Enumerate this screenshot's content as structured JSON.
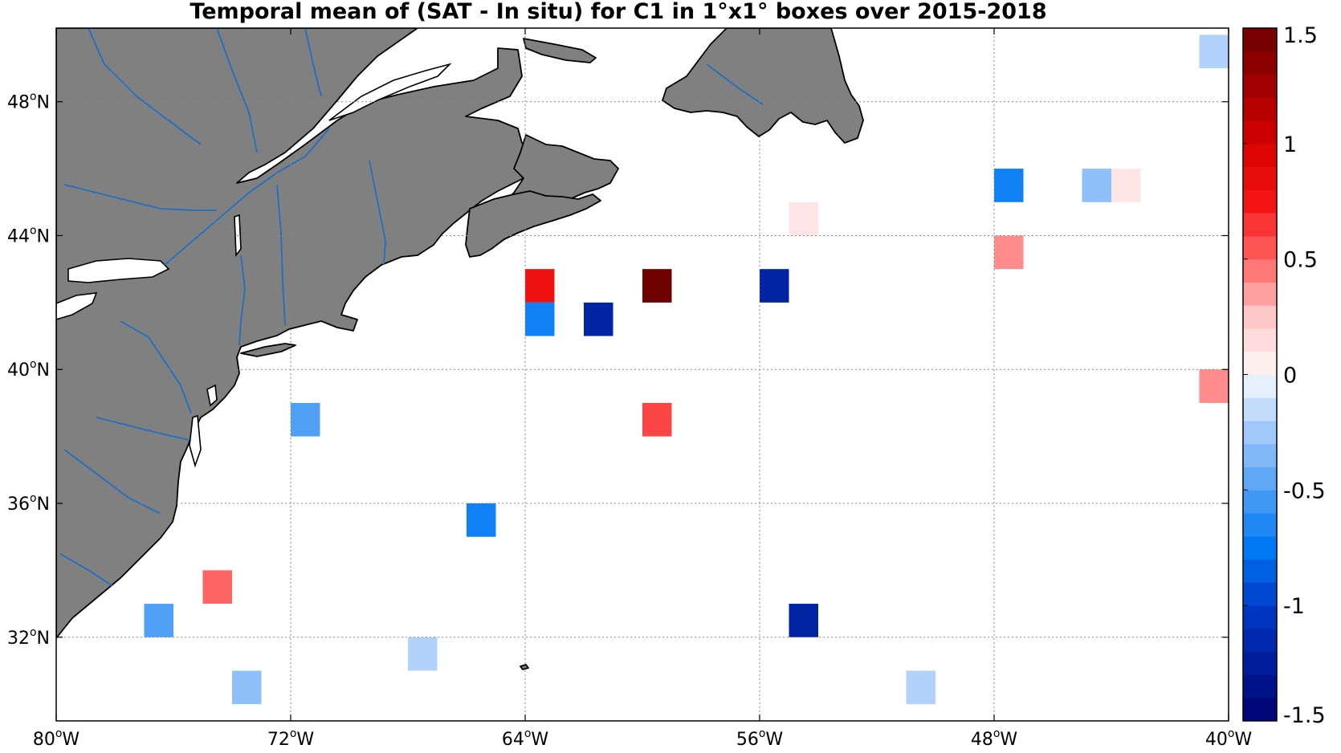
{
  "title": "Temporal mean of (SAT - In situ) for C1 in 1°x1° boxes over 2015-2018",
  "colors": {
    "land": "#808080",
    "coast": "#000000",
    "rivers": "#1f6fc4",
    "grid": "#888888",
    "ocean": "#ffffff"
  },
  "chart_data": {
    "type": "heatmap",
    "extent": {
      "lon": [
        -80,
        -40
      ],
      "lat": [
        29.5,
        50.2
      ]
    },
    "xticks": [
      {
        "value": -80,
        "label": "80",
        "suffix": "W"
      },
      {
        "value": -72,
        "label": "72",
        "suffix": "W"
      },
      {
        "value": -64,
        "label": "64",
        "suffix": "W"
      },
      {
        "value": -56,
        "label": "56",
        "suffix": "W"
      },
      {
        "value": -48,
        "label": "48",
        "suffix": "W"
      },
      {
        "value": -40,
        "label": "40",
        "suffix": "W"
      }
    ],
    "yticks": [
      {
        "value": 48,
        "label": "48",
        "suffix": "N"
      },
      {
        "value": 44,
        "label": "44",
        "suffix": "N"
      },
      {
        "value": 40,
        "label": "40",
        "suffix": "N"
      },
      {
        "value": 36,
        "label": "36",
        "suffix": "N"
      },
      {
        "value": 32,
        "label": "32",
        "suffix": "N"
      }
    ],
    "colorbar": {
      "range": [
        -1.5,
        1.5
      ],
      "step": 0.1,
      "ticks": [
        {
          "value": 1.5,
          "label": "1.5"
        },
        {
          "value": 1,
          "label": "1"
        },
        {
          "value": 0.5,
          "label": "0.5"
        },
        {
          "value": 0,
          "label": "0"
        },
        {
          "value": -0.5,
          "label": "-0.5"
        },
        {
          "value": -1,
          "label": "-1"
        },
        {
          "value": -1.5,
          "label": "-1.5"
        }
      ]
    },
    "boxes": [
      {
        "lon": -40.5,
        "lat": 49.5,
        "value": -0.2
      },
      {
        "lon": -47.5,
        "lat": 45.5,
        "value": -0.7
      },
      {
        "lon": -44.5,
        "lat": 45.5,
        "value": -0.3
      },
      {
        "lon": -43.5,
        "lat": 45.5,
        "value": 0.1
      },
      {
        "lon": -54.5,
        "lat": 44.5,
        "value": 0.1
      },
      {
        "lon": -47.5,
        "lat": 43.5,
        "value": 0.4
      },
      {
        "lon": -63.5,
        "lat": 42.5,
        "value": 0.8
      },
      {
        "lon": -59.5,
        "lat": 42.5,
        "value": 1.5
      },
      {
        "lon": -55.5,
        "lat": 42.5,
        "value": -1.2
      },
      {
        "lon": -63.5,
        "lat": 41.5,
        "value": -0.7
      },
      {
        "lon": -61.5,
        "lat": 41.5,
        "value": -1.2
      },
      {
        "lon": -40.5,
        "lat": 39.5,
        "value": 0.4
      },
      {
        "lon": -71.5,
        "lat": 38.5,
        "value": -0.5
      },
      {
        "lon": -59.5,
        "lat": 38.5,
        "value": 0.6
      },
      {
        "lon": -65.5,
        "lat": 35.5,
        "value": -0.7
      },
      {
        "lon": -74.5,
        "lat": 33.5,
        "value": 0.5
      },
      {
        "lon": -76.5,
        "lat": 32.5,
        "value": -0.5
      },
      {
        "lon": -54.5,
        "lat": 32.5,
        "value": -1.2
      },
      {
        "lon": -67.5,
        "lat": 31.5,
        "value": -0.2
      },
      {
        "lon": -73.5,
        "lat": 30.5,
        "value": -0.3
      },
      {
        "lon": -50.5,
        "lat": 30.5,
        "value": -0.2
      }
    ]
  }
}
